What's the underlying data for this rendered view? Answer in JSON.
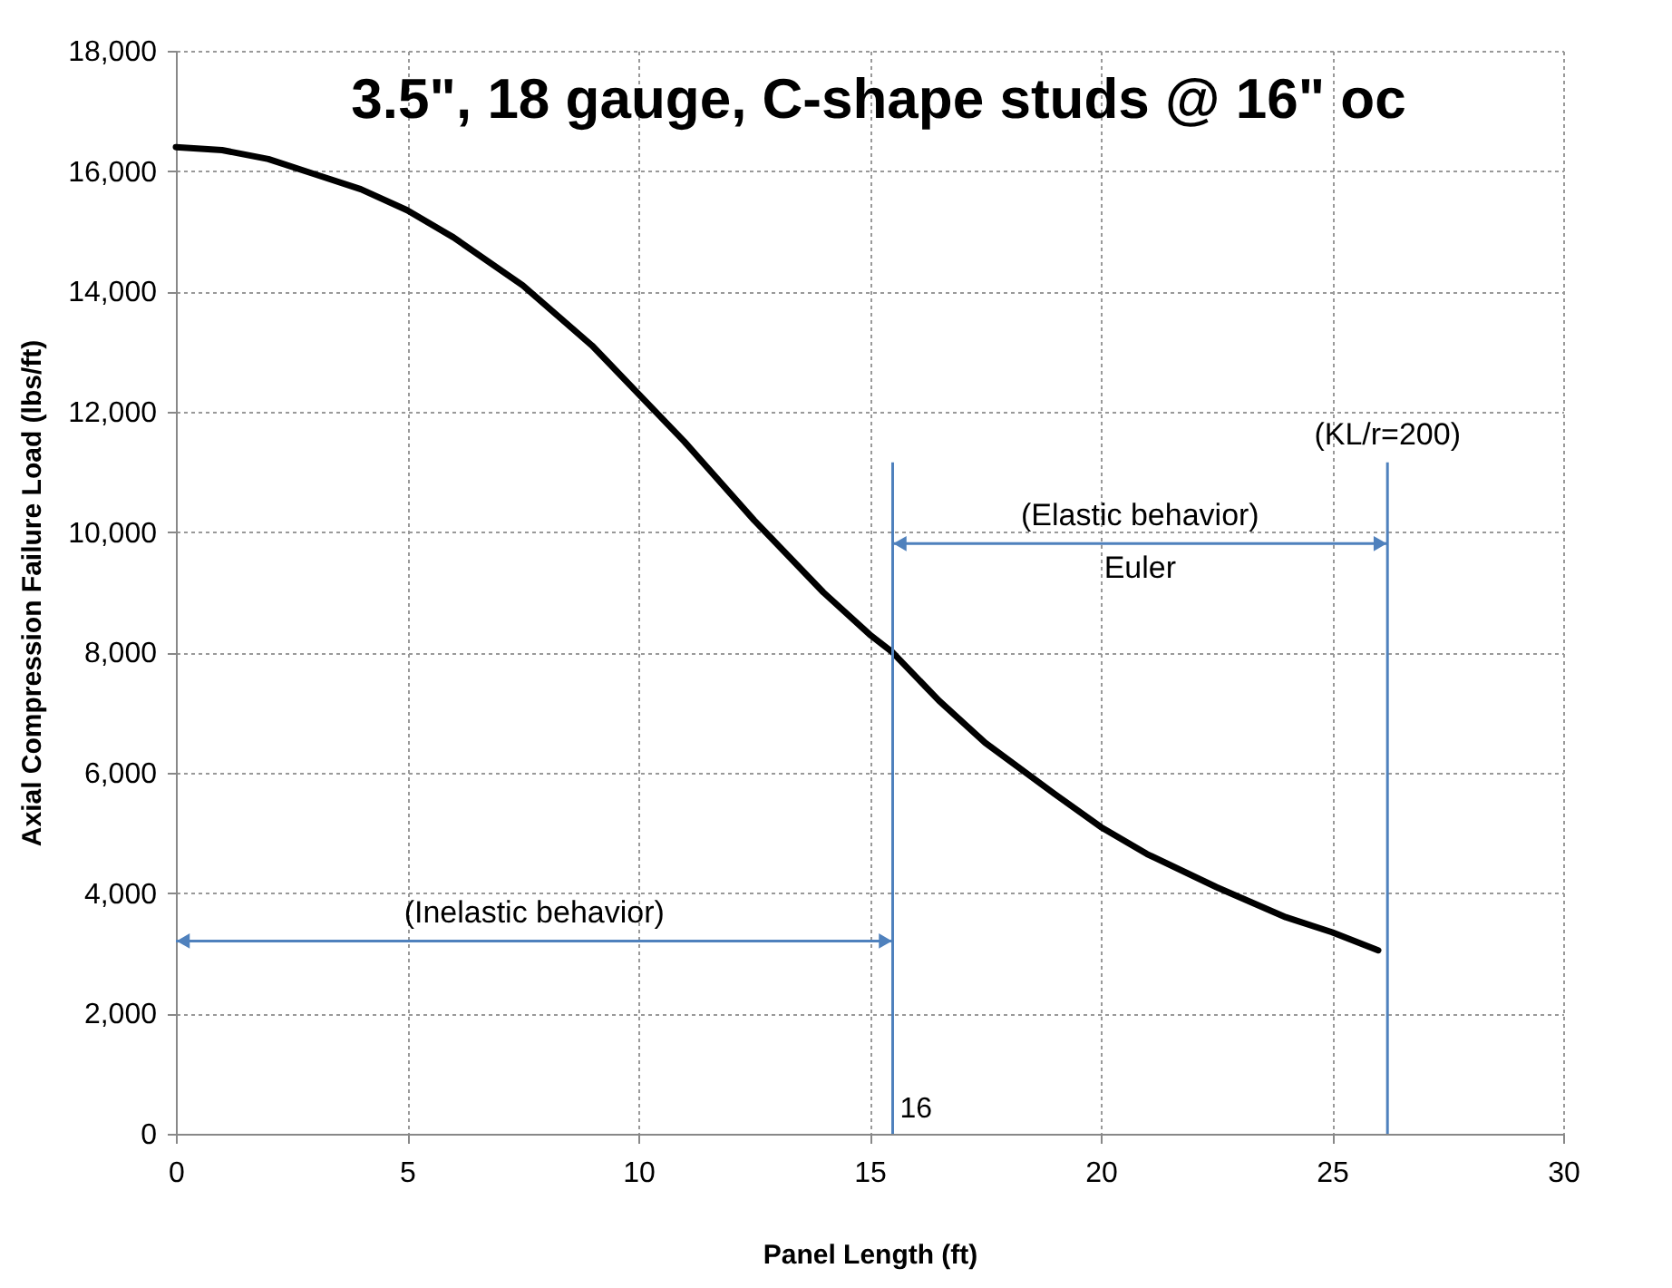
{
  "chart_data": {
    "type": "line",
    "title": "3.5\", 18 gauge, C-shape studs @ 16\" oc",
    "xlabel": "Panel Length (ft)",
    "ylabel": "Axial Compression Failure Load (lbs/ft)",
    "x": [
      0,
      1,
      2,
      3,
      4,
      5,
      6,
      7.5,
      9,
      10,
      11,
      12.5,
      14,
      15,
      15.5,
      16.5,
      17.5,
      19,
      20,
      21,
      22.5,
      24,
      25,
      26
    ],
    "series": [
      {
        "color": "#000000",
        "values": [
          16400,
          16350,
          16200,
          15950,
          15700,
          15350,
          14900,
          14100,
          13100,
          12300,
          11500,
          10200,
          9000,
          8300,
          8000,
          7200,
          6500,
          5650,
          5100,
          4650,
          4100,
          3600,
          3350,
          3050
        ]
      }
    ],
    "xlim": [
      0,
      30
    ],
    "xticks": [
      0,
      5,
      10,
      15,
      20,
      25,
      30
    ],
    "ylim": [
      0,
      18000
    ],
    "yticks": [
      {
        "value": 0,
        "label": "0"
      },
      {
        "value": 2000,
        "label": "2,000"
      },
      {
        "value": 4000,
        "label": "4,000"
      },
      {
        "value": 6000,
        "label": "6,000"
      },
      {
        "value": 8000,
        "label": "8,000"
      },
      {
        "value": 10000,
        "label": "10,000"
      },
      {
        "value": 12000,
        "label": "12,000"
      },
      {
        "value": 14000,
        "label": "14,000"
      },
      {
        "value": 16000,
        "label": "16,000"
      },
      {
        "value": 18000,
        "label": "18,000"
      }
    ],
    "ref_lines": [
      {
        "axis": "x",
        "value": 15.5,
        "label": "16",
        "color": "#4f81bd"
      },
      {
        "axis": "x",
        "value": 26.2,
        "color": "#4f81bd"
      }
    ],
    "annotations": [
      "(Inelastic behavior)",
      "(Elastic behavior)",
      "Euler",
      "(KL/r=200)"
    ],
    "grid": true,
    "marker": "none",
    "line_style": "solid"
  }
}
